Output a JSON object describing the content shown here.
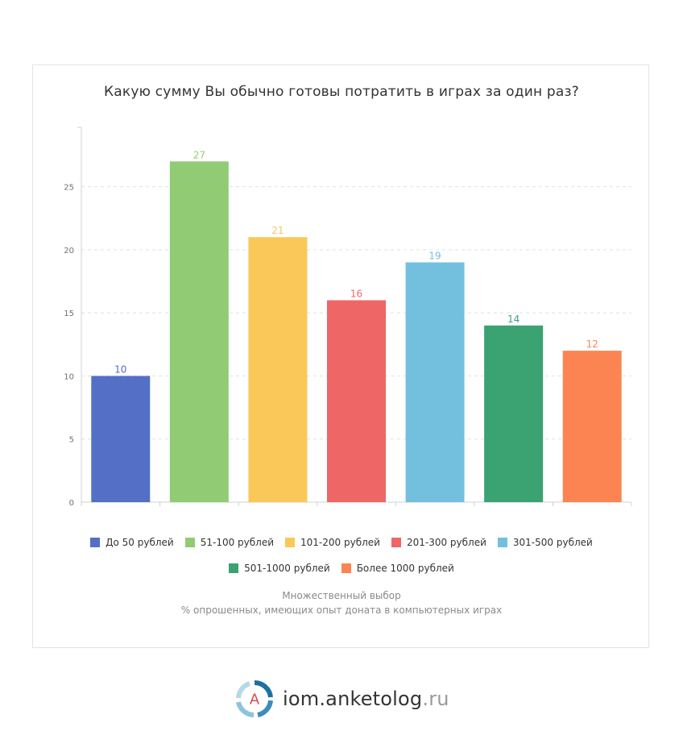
{
  "chart_data": {
    "type": "bar",
    "title": "Какую сумму Вы обычно готовы потратить в играх за один раз?",
    "categories": [
      "До 50 рублей",
      "51-100 рублей",
      "101-200 рублей",
      "201-300 рублей",
      "301-500 рублей",
      "501-1000 рублей",
      "Более 1000 рублей"
    ],
    "values": [
      10,
      27,
      21,
      16,
      19,
      14,
      12
    ],
    "colors": [
      "#5470c6",
      "#91cc75",
      "#fac858",
      "#ee6666",
      "#73c0de",
      "#3ba272",
      "#fc8452"
    ],
    "ylim": [
      0,
      29.7
    ],
    "yticks": [
      0,
      5,
      10,
      15,
      20,
      25
    ],
    "grid": true,
    "legend": "bottom",
    "data_labels": true
  },
  "notes": {
    "line1": "Множественный выбор",
    "line2": "% опрошенных, имеющих опыт доната в компьютерных играх"
  },
  "footer": {
    "logo_letter": "A",
    "brand": "iom.anketolog",
    "domain": ".ru"
  }
}
